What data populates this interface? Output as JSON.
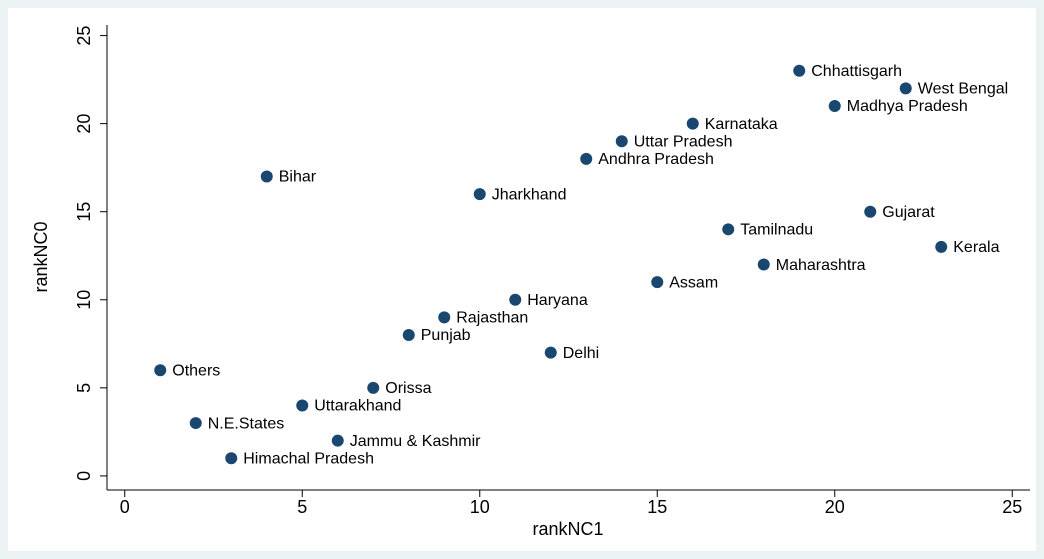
{
  "chart_data": {
    "type": "scatter",
    "xlabel": "rankNC1",
    "ylabel": "rankNC0",
    "x": [
      1,
      2,
      3,
      4,
      5,
      6,
      7,
      8,
      9,
      10,
      11,
      12,
      13,
      14,
      15,
      16,
      17,
      18,
      19,
      20,
      21,
      22,
      23
    ],
    "labels": [
      "Others",
      "N.E.States",
      "Himachal Pradesh",
      "Bihar",
      "Uttarakhand",
      "Jammu & Kashmir",
      "Orissa",
      "Punjab",
      "Rajasthan",
      "Jharkhand",
      "Haryana",
      "Delhi",
      "Andhra Pradesh",
      "Uttar Pradesh",
      "Assam",
      "Karnataka",
      "Tamilnadu",
      "Maharashtra",
      "Chhattisgarh",
      "Madhya Pradesh",
      "Gujarat",
      "West Bengal",
      "Kerala"
    ],
    "series": [
      {
        "color": "#1a476f",
        "values": [
          6,
          3,
          1,
          17,
          4,
          2,
          5,
          8,
          9,
          16,
          10,
          7,
          18,
          19,
          11,
          20,
          14,
          12,
          23,
          21,
          15,
          22,
          13
        ]
      }
    ],
    "xlim": [
      -0.5,
      25.5
    ],
    "ylim": [
      -0.8,
      25.6
    ],
    "xticks": [
      0,
      5,
      10,
      15,
      20,
      25
    ],
    "yticks": [
      0,
      5,
      10,
      15,
      20,
      25
    ]
  }
}
